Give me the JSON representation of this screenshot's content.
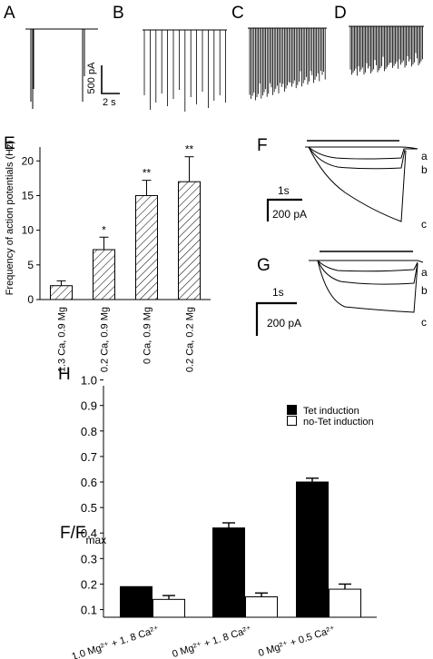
{
  "panels": {
    "A": "A",
    "B": "B",
    "C": "C",
    "D": "D",
    "E": "E",
    "F": "F",
    "G": "G",
    "H": "H"
  },
  "scalebar_top": {
    "y": "500 pA",
    "x": "2 s"
  },
  "scalebar_F": {
    "time": "1s",
    "current": "200 pA"
  },
  "scalebar_G": {
    "time": "1s",
    "current": "200 pA"
  },
  "trace_labels_F": [
    "a",
    "b",
    "c"
  ],
  "trace_labels_G": [
    "a",
    "b",
    "c"
  ],
  "chart_data": [
    {
      "type": "bar",
      "panel": "E",
      "categories": [
        "1.3 Ca, 0.9 Mg",
        "0.2 Ca, 0.9 Mg",
        "0 Ca, 0.9 Mg",
        "0.2 Ca, 0.2 Mg"
      ],
      "values": [
        2.0,
        7.2,
        15.0,
        17.0
      ],
      "errors": [
        0.7,
        1.8,
        2.2,
        3.6
      ],
      "significance": [
        "",
        "*",
        "**",
        "**"
      ],
      "ylabel": "Frequency of action potentials (Hz)",
      "ylim": [
        0,
        22
      ],
      "yticks": [
        0,
        5,
        10,
        15,
        20
      ],
      "fill": "hatched"
    },
    {
      "type": "bar",
      "panel": "H",
      "categories": [
        "1.0 Mg²⁺ + 1. 8 Ca²⁺",
        "0 Mg²⁺ + 1. 8 Ca²⁺",
        "0 Mg²⁺ + 0.5 Ca²⁺"
      ],
      "series": [
        {
          "name": "Tet induction",
          "values": [
            0.19,
            0.42,
            0.6
          ],
          "errors": [
            0.0,
            0.02,
            0.015
          ],
          "color": "#000000"
        },
        {
          "name": "no-Tet induction",
          "values": [
            0.14,
            0.15,
            0.18
          ],
          "errors": [
            0.015,
            0.015,
            0.02
          ],
          "color": "#ffffff"
        }
      ],
      "ylabel_main": "F/F",
      "ylabel_sub": "max",
      "ylim": [
        0.0,
        1.0
      ],
      "yticks": [
        "1.0",
        "0.9",
        "0.8",
        "0.7",
        "0.6",
        "0.5",
        "0.4",
        "0.3",
        "0.2",
        "0.1"
      ],
      "legend": "top-right"
    }
  ]
}
